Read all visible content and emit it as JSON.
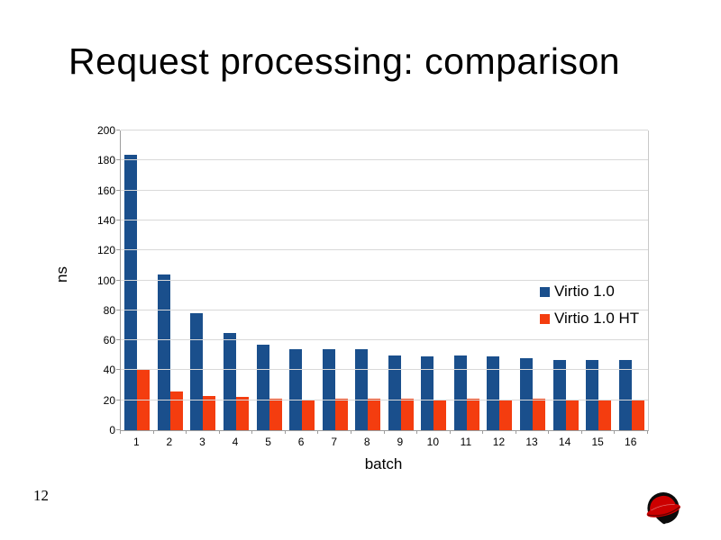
{
  "slide": {
    "title": "Request processing: comparison",
    "page_number": "12"
  },
  "chart_data": {
    "type": "bar",
    "title": "",
    "xlabel": "batch",
    "ylabel": "ns",
    "ylim": [
      0,
      200
    ],
    "yticks": [
      0,
      20,
      40,
      60,
      80,
      100,
      120,
      140,
      160,
      180,
      200
    ],
    "categories": [
      "1",
      "2",
      "3",
      "4",
      "5",
      "6",
      "7",
      "8",
      "9",
      "10",
      "11",
      "12",
      "13",
      "14",
      "15",
      "16"
    ],
    "series": [
      {
        "name": "Virtio 1.0",
        "color": "#1A4F8C",
        "values": [
          184,
          104,
          78,
          65,
          57,
          54,
          54,
          54,
          50,
          49,
          50,
          49,
          48,
          47,
          47,
          47
        ]
      },
      {
        "name": "Virtio 1.0 HT",
        "color": "#F43D0F",
        "values": [
          40,
          26,
          23,
          22,
          21,
          20,
          21,
          21,
          21,
          20,
          21,
          20,
          21,
          20,
          20,
          20
        ]
      }
    ],
    "grid": "horizontal",
    "legend_position": "inside-right",
    "gridline_color": "#D9D9D9",
    "axis_color": "#9C9C9C"
  },
  "logo": {
    "name": "Red Hat Shadowman",
    "head_color": "#0B0B0B",
    "hat_color": "#CC0000"
  }
}
